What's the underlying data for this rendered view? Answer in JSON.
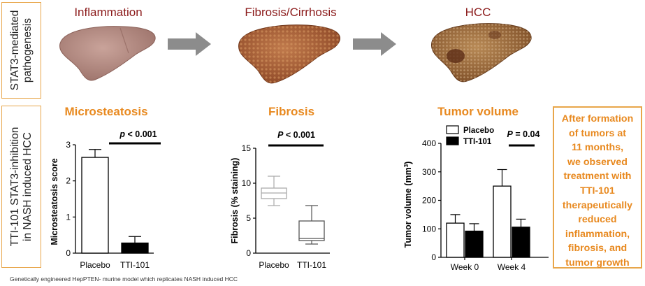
{
  "side_labels": {
    "top": [
      "STAT3-mediated",
      "pathogenesis"
    ],
    "bottom": [
      "TTI-101 STAT3-inhibition",
      "in NASH induced HCC"
    ]
  },
  "stages": [
    {
      "label": "Inflammation"
    },
    {
      "label": "Fibrosis/Cirrhosis"
    },
    {
      "label": "HCC"
    }
  ],
  "colors": {
    "stage_label": "#8b1a1a",
    "panel_title": "#e8891f",
    "border": "#e8a64a",
    "arrow": "#8c8c8c",
    "liver_healthy": "#b89088",
    "liver_fibrotic": "#a85e36",
    "liver_hcc": "#9a6a3a"
  },
  "icons": [
    "liver-inflammation-icon",
    "arrow-right-icon",
    "liver-fibrosis-icon",
    "arrow-right-icon",
    "liver-hcc-icon"
  ],
  "panels": {
    "microsteatosis": {
      "title": "Microsteatosis"
    },
    "fibrosis": {
      "title": "Fibrosis"
    },
    "tumor": {
      "title": "Tumor volume"
    }
  },
  "chart_data": [
    {
      "type": "bar",
      "title": "Microsteatosis",
      "ylabel": "Microsteatosis score",
      "xlabel": "",
      "categories": [
        "Placebo",
        "TTI-101"
      ],
      "values": [
        2.65,
        0.28
      ],
      "errors": [
        0.22,
        0.18
      ],
      "fills": [
        "#ffffff",
        "#000000"
      ],
      "ylim": [
        0,
        3
      ],
      "yticks": [
        "0",
        "1",
        "2",
        "3"
      ],
      "annotation": {
        "prefix": "p",
        "text": " < 0.001"
      }
    },
    {
      "type": "box",
      "title": "Fibrosis",
      "ylabel": "Fibrosis (% staining)",
      "xlabel": "",
      "categories": [
        "Placebo",
        "TTI-101"
      ],
      "boxes": [
        {
          "min": 6.8,
          "q1": 7.8,
          "median": 8.6,
          "q3": 9.3,
          "max": 11.0
        },
        {
          "min": 1.3,
          "q1": 1.8,
          "median": 2.1,
          "q3": 4.6,
          "max": 6.8
        }
      ],
      "ylim": [
        0,
        15
      ],
      "yticks": [
        "0",
        "5",
        "10",
        "15"
      ],
      "annotation": {
        "prefix": "P",
        "text": " < 0.001"
      }
    },
    {
      "type": "bar",
      "title": "Tumor volume",
      "ylabel": "Tumor volume (mm",
      "ylabel_sup": "3",
      "ylabel_end": ")",
      "xlabel": "",
      "categories": [
        "Week 0",
        "Week 4"
      ],
      "series": [
        {
          "name": "Placebo",
          "values": [
            120,
            250
          ],
          "errors": [
            30,
            58
          ],
          "fill": "#ffffff"
        },
        {
          "name": "TTI-101",
          "values": [
            92,
            106
          ],
          "errors": [
            26,
            28
          ],
          "fill": "#000000"
        }
      ],
      "ylim": [
        0,
        400
      ],
      "yticks": [
        "0",
        "100",
        "200",
        "300",
        "400"
      ],
      "legend": "top-left",
      "annotation": {
        "prefix": "P",
        "text": " = 0.04"
      }
    }
  ],
  "callout": {
    "lines": [
      "After formation",
      "of tumors at",
      "11 months,",
      "we observed",
      "treatment with",
      "TTI-101",
      "therapeutically",
      "reduced",
      "inflammation,",
      "fibrosis, and",
      "tumor growth"
    ]
  },
  "footnote": "Genetically engineered HepPTEN- murine model which replicates NASH induced HCC"
}
